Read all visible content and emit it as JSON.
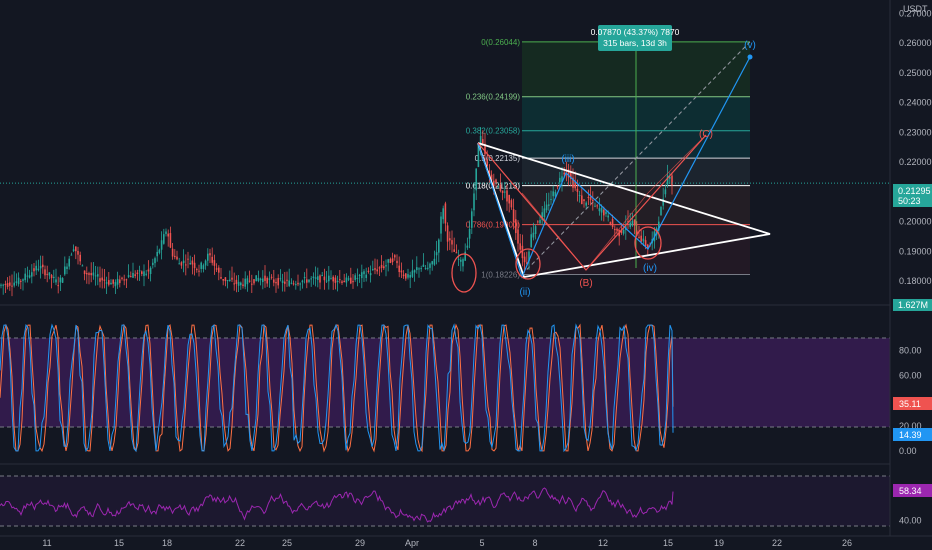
{
  "chart_data": [
    {
      "type": "candlestick",
      "currency_label": "USDT",
      "price_scale": {
        "ylim": [
          0.172,
          0.2745
        ],
        "ticks": [
          "0.27000",
          "0.26000",
          "0.25000",
          "0.24000",
          "0.23000",
          "0.22000",
          "0.21000",
          "0.20000",
          "0.19000",
          "0.18000"
        ]
      },
      "last_price": {
        "value": "0.21295",
        "countdown": "50:23"
      },
      "volume_label": "1.627M",
      "x_axis": {
        "ticks": [
          "11",
          "15",
          "18",
          "22",
          "25",
          "29",
          "Apr",
          "5",
          "8",
          "12",
          "15",
          "19",
          "22",
          "26"
        ]
      },
      "price_path": [
        [
          0,
          0.1785
        ],
        [
          20,
          0.18
        ],
        [
          40,
          0.185
        ],
        [
          60,
          0.179
        ],
        [
          75,
          0.192
        ],
        [
          85,
          0.183
        ],
        [
          100,
          0.181
        ],
        [
          115,
          0.179
        ],
        [
          130,
          0.182
        ],
        [
          150,
          0.183
        ],
        [
          162,
          0.192
        ],
        [
          168,
          0.198
        ],
        [
          172,
          0.19
        ],
        [
          180,
          0.186
        ],
        [
          190,
          0.187
        ],
        [
          200,
          0.184
        ],
        [
          210,
          0.189
        ],
        [
          222,
          0.181
        ],
        [
          240,
          0.179
        ],
        [
          260,
          0.181
        ],
        [
          275,
          0.18
        ],
        [
          290,
          0.1795
        ],
        [
          310,
          0.1805
        ],
        [
          330,
          0.181
        ],
        [
          350,
          0.18
        ],
        [
          370,
          0.183
        ],
        [
          385,
          0.185
        ],
        [
          395,
          0.188
        ],
        [
          402,
          0.183
        ],
        [
          410,
          0.181
        ],
        [
          420,
          0.185
        ],
        [
          430,
          0.184
        ],
        [
          438,
          0.19
        ],
        [
          444,
          0.206
        ],
        [
          448,
          0.195
        ],
        [
          455,
          0.19
        ],
        [
          462,
          0.186
        ],
        [
          468,
          0.192
        ],
        [
          474,
          0.205
        ],
        [
          478,
          0.222
        ],
        [
          481,
          0.229
        ],
        [
          485,
          0.224
        ],
        [
          490,
          0.215
        ],
        [
          498,
          0.212
        ],
        [
          505,
          0.21
        ],
        [
          512,
          0.205
        ],
        [
          518,
          0.195
        ],
        [
          522,
          0.19
        ],
        [
          527,
          0.185
        ],
        [
          532,
          0.195
        ],
        [
          538,
          0.2
        ],
        [
          545,
          0.203
        ],
        [
          552,
          0.208
        ],
        [
          558,
          0.212
        ],
        [
          563,
          0.216
        ],
        [
          567,
          0.218
        ],
        [
          572,
          0.214
        ],
        [
          578,
          0.21
        ],
        [
          584,
          0.206
        ],
        [
          590,
          0.208
        ],
        [
          596,
          0.205
        ],
        [
          602,
          0.204
        ],
        [
          608,
          0.202
        ],
        [
          614,
          0.198
        ],
        [
          620,
          0.196
        ],
        [
          627,
          0.199
        ],
        [
          633,
          0.2
        ],
        [
          638,
          0.196
        ],
        [
          645,
          0.193
        ],
        [
          650,
          0.191
        ],
        [
          656,
          0.196
        ],
        [
          662,
          0.204
        ],
        [
          667,
          0.213
        ],
        [
          670,
          0.2175
        ],
        [
          673,
          0.2129
        ]
      ],
      "fibonacci": [
        {
          "ratio": "0",
          "price": "0.26044",
          "value": 0.26044,
          "color": "#4caf50"
        },
        {
          "ratio": "0.236",
          "price": "0.24199",
          "value": 0.24199,
          "color": "#81c784"
        },
        {
          "ratio": "0.382",
          "price": "0.23058",
          "value": 0.23058,
          "color": "#26a69a"
        },
        {
          "ratio": "0.5",
          "price": "0.22135",
          "value": 0.22135,
          "color": "#d1d4dc"
        },
        {
          "ratio": "0.618",
          "price": "0.21213",
          "value": 0.21213,
          "color": "#ffffff"
        },
        {
          "ratio": "0.786",
          "price": "0.19900",
          "value": 0.199,
          "color": "#ef5350"
        },
        {
          "ratio": "1",
          "price": "0.18226",
          "value": 0.18226,
          "color": "#787b86"
        }
      ],
      "measure_badge": {
        "line1": "0.07870 (43.37%) 7870",
        "line2": "315 bars, 13d 3h"
      },
      "wave_labels": [
        {
          "text": "(ii)",
          "color": "#2196f3"
        },
        {
          "text": "(iii)",
          "color": "#2196f3"
        },
        {
          "text": "(iv)",
          "color": "#2196f3"
        },
        {
          "text": "(v)",
          "color": "#2196f3"
        },
        {
          "text": "(B)",
          "color": "#ef5350"
        },
        {
          "text": "(C)",
          "color": "#ef5350"
        }
      ]
    },
    {
      "type": "line",
      "indicator": "stochastic",
      "ylim": [
        -8,
        112
      ],
      "ticks": [
        "80.00",
        "60.00",
        "40.00",
        "20.00",
        "0.00"
      ],
      "band": [
        20,
        80
      ],
      "current_values": [
        {
          "value": "35.11",
          "color": "#ef5350"
        },
        {
          "value": "14.39",
          "color": "#2196f3"
        }
      ]
    },
    {
      "type": "line",
      "indicator": "rsi",
      "ylim": [
        30,
        76
      ],
      "ticks": [
        "40.00"
      ],
      "current_value": "58.34",
      "color": "#9c27b0"
    }
  ],
  "colors": {
    "background": "#131722",
    "up": "#26a69a",
    "down": "#ef5350",
    "stoch_k": "#2196f3",
    "stoch_d": "#ff7043",
    "rsi": "#9c27b0",
    "band_fill": "#4a1f6e"
  }
}
